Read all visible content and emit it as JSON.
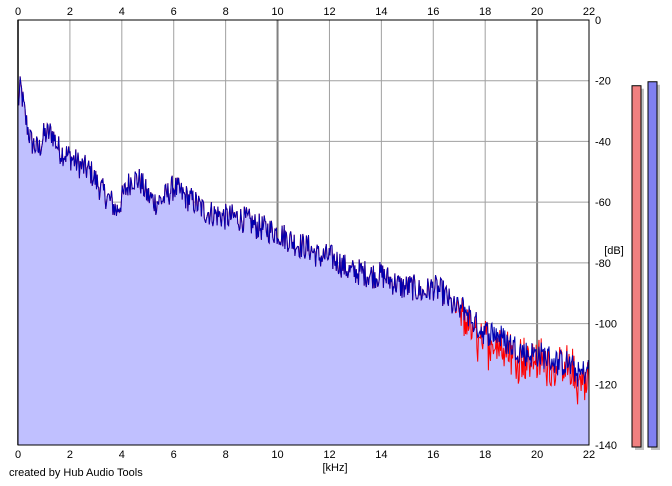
{
  "credit": "created by Hub Audio Tools",
  "colors": {
    "fill": "#c0c0ff",
    "blue_line": "#0000b0",
    "red_line": "#ff0000",
    "grid": "#a0a0a0",
    "grid_major": "#808080",
    "meter_left": "#f08080",
    "meter_right": "#8080f0",
    "meter_shadow": "#c0c0c0"
  },
  "chart_data": {
    "type": "line",
    "xlabel": "[kHz]",
    "ylabel": "[dB]",
    "xlim": [
      0,
      22
    ],
    "ylim": [
      -140,
      0
    ],
    "x_ticks": [
      "0",
      "2",
      "4",
      "6",
      "8",
      "10",
      "12",
      "14",
      "16",
      "18",
      "20",
      "22"
    ],
    "y_ticks": [
      "0",
      "-20",
      "-40",
      "-60",
      "-80",
      "-100",
      "-120",
      "-140"
    ],
    "grid": true,
    "x": [
      0,
      0.1,
      0.3,
      0.5,
      0.8,
      1.0,
      1.3,
      1.6,
      2.0,
      2.4,
      2.8,
      3.0,
      3.3,
      3.6,
      3.8,
      4.0,
      4.2,
      4.4,
      4.7,
      5.0,
      5.3,
      5.6,
      6.0,
      6.4,
      6.8,
      7.2,
      7.6,
      8.0,
      8.4,
      8.8,
      9.2,
      9.6,
      10.0,
      10.4,
      10.8,
      11.2,
      11.6,
      12.0,
      12.4,
      12.8,
      13.2,
      13.6,
      14.0,
      14.4,
      14.8,
      15.2,
      15.6,
      16.0,
      16.4,
      16.8,
      17.2,
      17.6,
      18.0,
      18.4,
      18.8,
      19.2,
      19.6,
      20.0,
      20.4,
      20.8,
      21.2,
      21.6,
      22.0
    ],
    "series": [
      {
        "values": [
          -28,
          -22,
          -33,
          -40,
          -43,
          -38,
          -37,
          -43,
          -45,
          -48,
          -50,
          -53,
          -57,
          -60,
          -63,
          -59,
          -55,
          -52,
          -53,
          -58,
          -60,
          -59,
          -55,
          -58,
          -60,
          -63,
          -64,
          -65,
          -65,
          -66,
          -68,
          -69,
          -70,
          -72,
          -74,
          -75,
          -78,
          -78,
          -80,
          -83,
          -83,
          -84,
          -84,
          -86,
          -88,
          -88,
          -90,
          -88,
          -90,
          -95,
          -95,
          -100,
          -103,
          -103,
          -106,
          -108,
          -110,
          -110,
          -111,
          -113,
          -113,
          -117,
          -115
        ]
      },
      {
        "values": [
          -28,
          -22,
          -33,
          -40,
          -43,
          -38,
          -37,
          -43,
          -45,
          -48,
          -50,
          -53,
          -57,
          -60,
          -63,
          -59,
          -55,
          -52,
          -53,
          -58,
          -60,
          -59,
          -55,
          -58,
          -60,
          -63,
          -64,
          -65,
          -65,
          -66,
          -68,
          -69,
          -70,
          -72,
          -74,
          -75,
          -78,
          -78,
          -80,
          -83,
          -83,
          -84,
          -84,
          -86,
          -88,
          -88,
          -90,
          -88,
          -90,
          -95,
          -98,
          -104,
          -106,
          -106,
          -108,
          -110,
          -112,
          -112,
          -113,
          -115,
          -115,
          -120,
          -117
        ]
      }
    ]
  },
  "meters": {
    "left_level": 0.91,
    "right_level": 0.92
  }
}
